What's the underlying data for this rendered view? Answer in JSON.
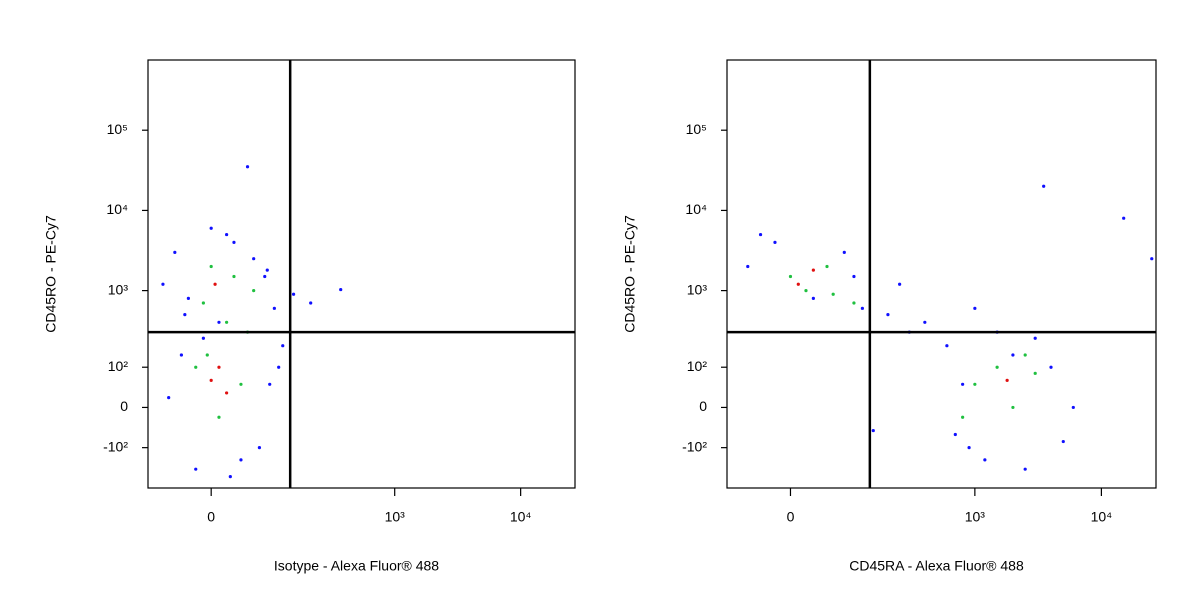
{
  "chart_data": [
    {
      "type": "scatter",
      "xlabel": "Isotype - Alexa Fluor® 488",
      "ylabel": "CD45RO - PE-Cy7",
      "xscale": "logicle",
      "yscale": "logicle",
      "xlim": [
        -100,
        27000
      ],
      "ylim": [
        -350,
        750000
      ],
      "xticks": [
        0,
        {
          "value": 1000,
          "label": "10³"
        },
        {
          "value": 10000,
          "label": "10⁴"
        }
      ],
      "yticks": [
        {
          "value": -100,
          "label": "-10²"
        },
        0,
        {
          "value": 100,
          "label": "10²"
        },
        {
          "value": 1000,
          "label": "10³"
        },
        {
          "value": 10000,
          "label": "10⁴"
        },
        {
          "value": 100000,
          "label": "10⁵"
        }
      ],
      "gates": {
        "x": 140,
        "y": 300
      },
      "series": [
        {
          "color": "#1010ff",
          "x": [
            -50,
            20,
            80,
            -30,
            100,
            60,
            -70,
            40,
            120,
            -20,
            10,
            90,
            -40,
            70,
            30,
            0,
            150,
            -60,
            50,
            110,
            -10,
            25,
            85,
            -35,
            210,
            370
          ],
          "y": [
            3000,
            5000,
            1500,
            800,
            600,
            2500,
            1200,
            -150,
            200,
            -200,
            400,
            50,
            150,
            -100,
            4000,
            6000,
            900,
            20,
            35000,
            100,
            250,
            -250,
            1800,
            500,
            700,
            1030
          ]
        },
        {
          "color": "#20c040",
          "x": [
            -10,
            30,
            60,
            0,
            20,
            -20,
            40,
            10,
            50,
            -5
          ],
          "y": [
            700,
            1500,
            1000,
            2000,
            400,
            100,
            50,
            -20,
            300,
            150
          ]
        },
        {
          "color": "#e01010",
          "x": [
            0,
            10,
            20,
            5
          ],
          "y": [
            60,
            100,
            30,
            1200
          ]
        }
      ]
    },
    {
      "type": "scatter",
      "xlabel": "CD45RA - Alexa Fluor® 488",
      "ylabel": "CD45RO - PE-Cy7",
      "xscale": "logicle",
      "yscale": "logicle",
      "xlim": [
        -100,
        27000
      ],
      "ylim": [
        -350,
        750000
      ],
      "xticks": [
        0,
        {
          "value": 1000,
          "label": "10³"
        },
        {
          "value": 10000,
          "label": "10⁴"
        }
      ],
      "yticks": [
        {
          "value": -100,
          "label": "-10²"
        },
        0,
        {
          "value": 100,
          "label": "10²"
        },
        {
          "value": 1000,
          "label": "10³"
        },
        {
          "value": 10000,
          "label": "10⁴"
        },
        {
          "value": 100000,
          "label": "10⁵"
        }
      ],
      "gates": {
        "x": 140,
        "y": 300
      },
      "series": [
        {
          "color": "#1010ff",
          "x": [
            -60,
            -20,
            30,
            80,
            120,
            200,
            300,
            150,
            400,
            600,
            900,
            1500,
            2500,
            4000,
            6000,
            800,
            1200,
            2000,
            3000,
            5000,
            700,
            3500,
            15000,
            25000,
            1000,
            250,
            -40,
            100
          ],
          "y": [
            2000,
            4000,
            800,
            3000,
            600,
            500,
            300,
            -50,
            400,
            200,
            -100,
            300,
            -200,
            100,
            0,
            50,
            -150,
            150,
            250,
            -80,
            -60,
            20000,
            8000,
            2500,
            600,
            1200,
            5000,
            1500
          ]
        },
        {
          "color": "#20c040",
          "x": [
            0,
            20,
            50,
            100,
            1000,
            1500,
            2000,
            3000,
            800,
            2500,
            60
          ],
          "y": [
            1500,
            1000,
            2000,
            700,
            50,
            100,
            0,
            80,
            -20,
            150,
            900
          ]
        },
        {
          "color": "#e01010",
          "x": [
            10,
            30,
            1800
          ],
          "y": [
            1200,
            1800,
            60
          ]
        }
      ]
    }
  ]
}
